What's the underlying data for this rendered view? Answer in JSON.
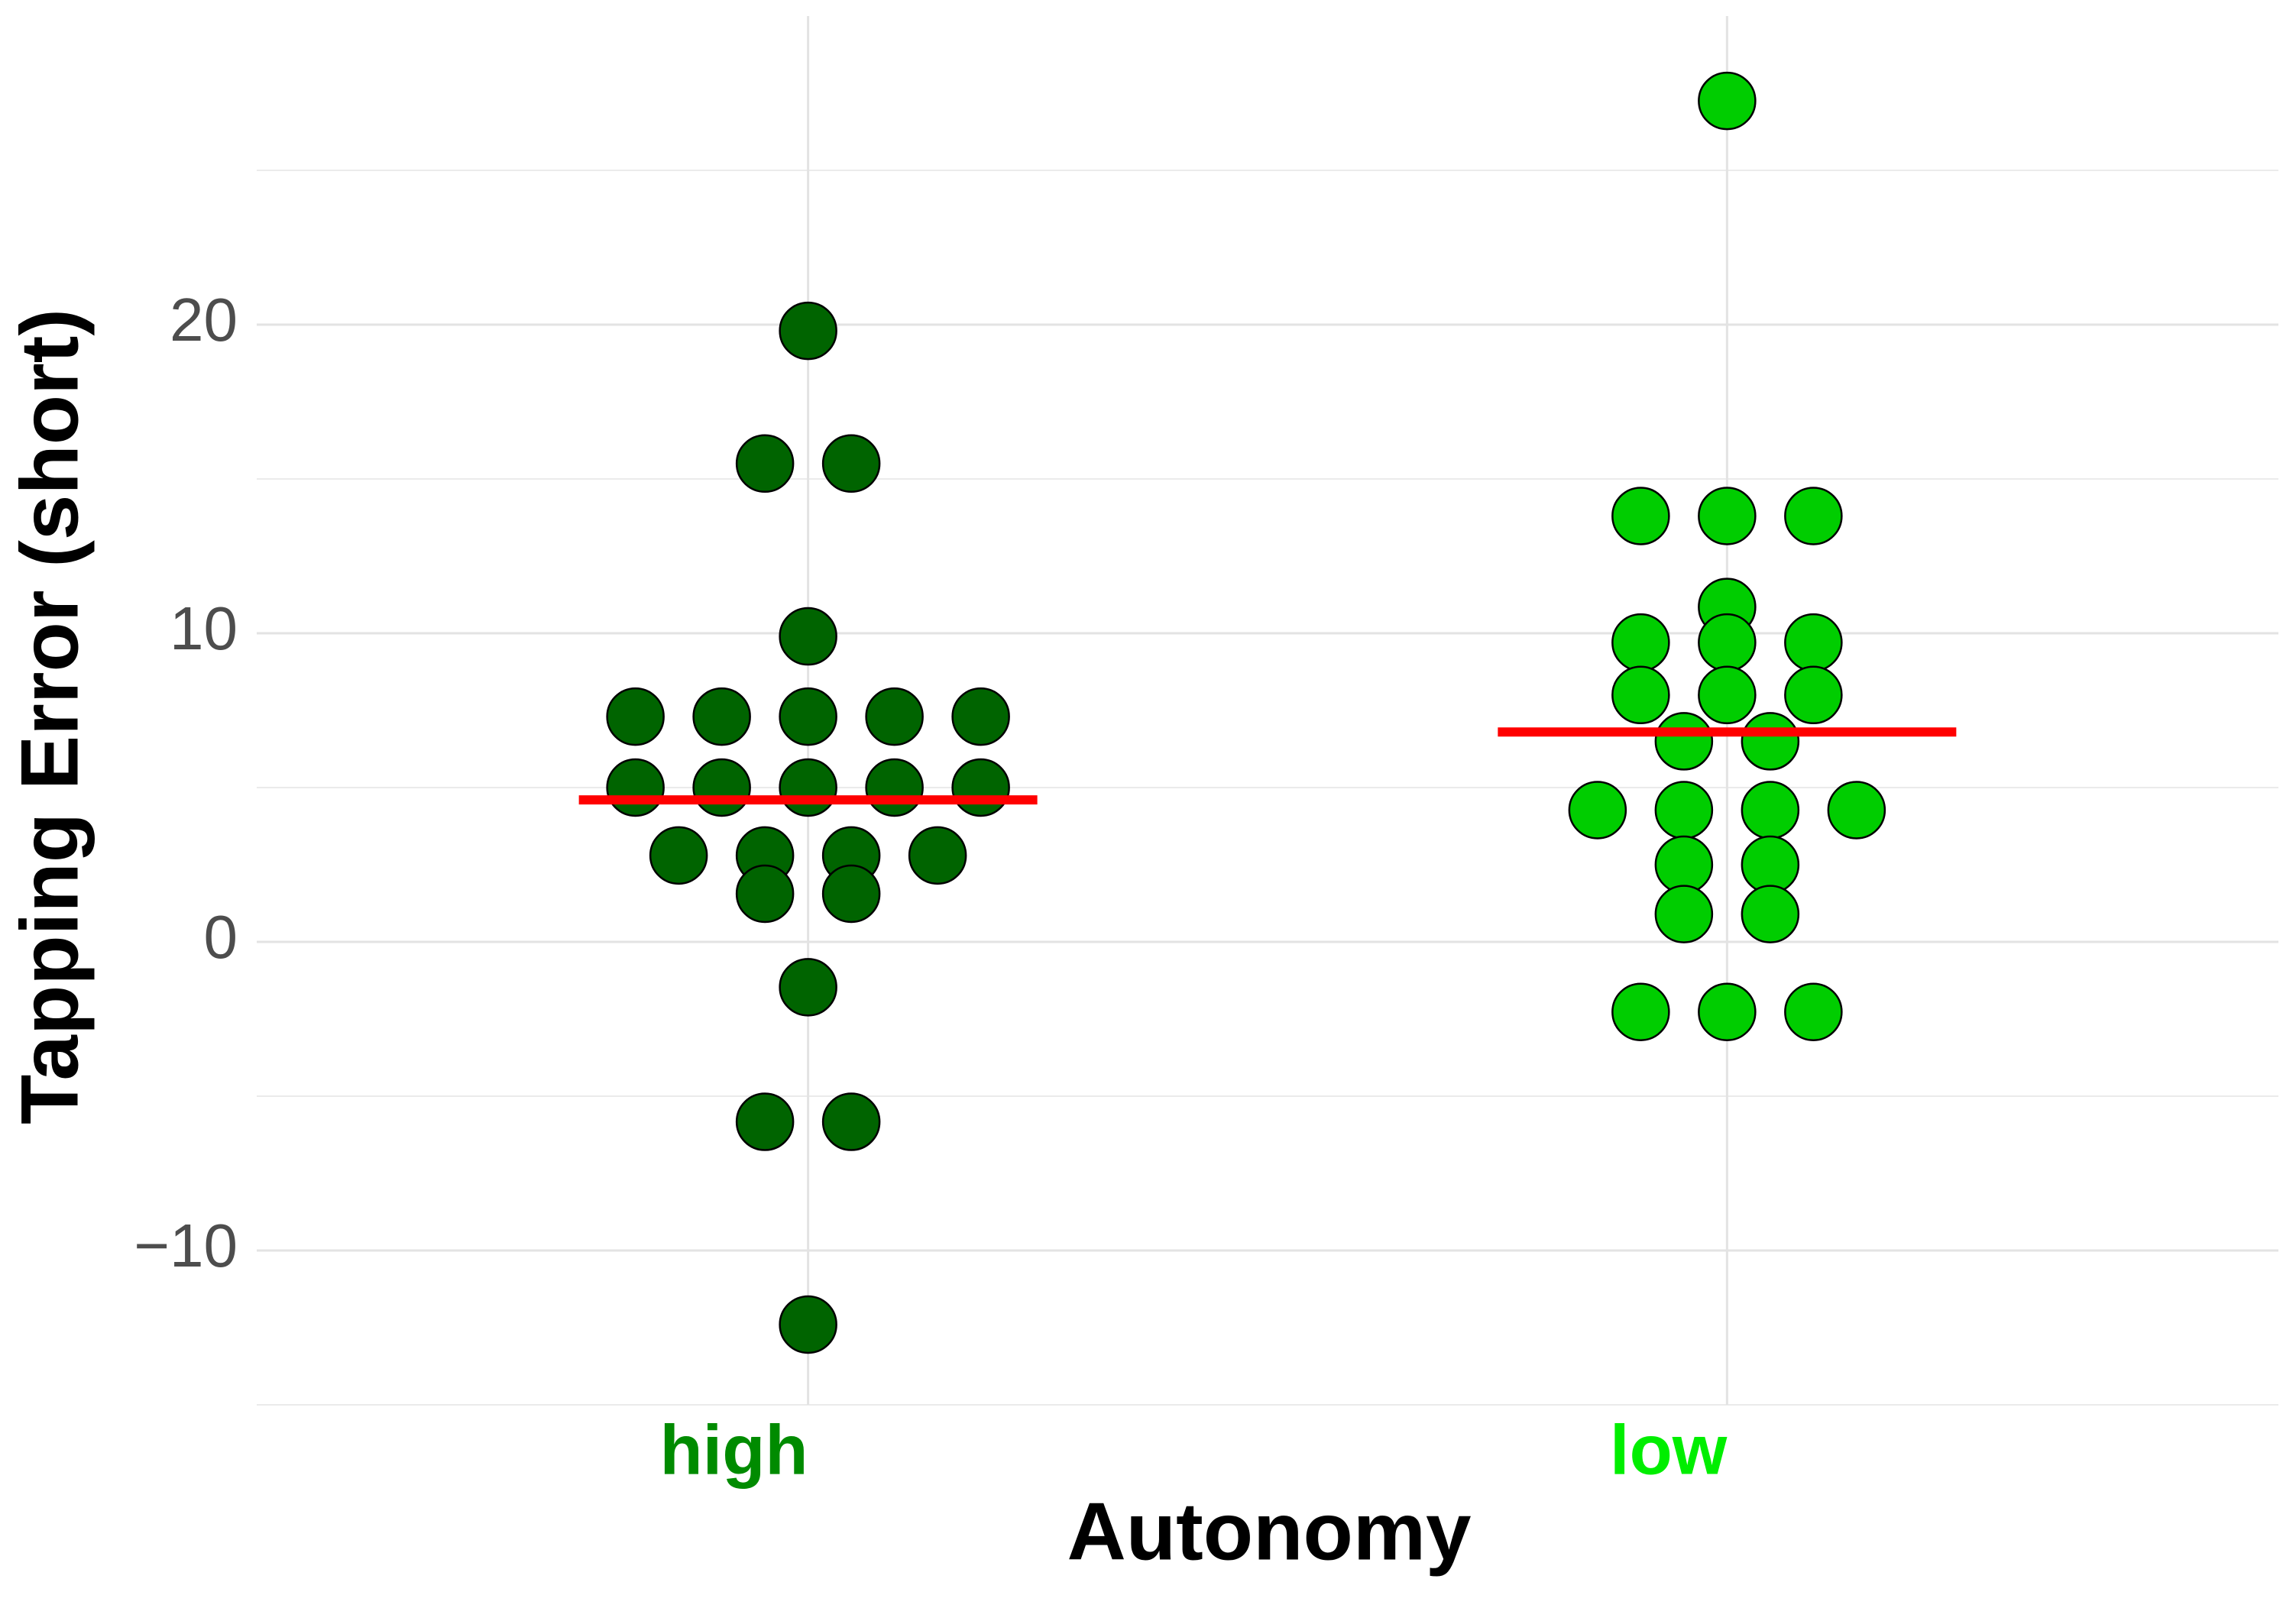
{
  "chart_data": {
    "type": "dotplot",
    "ylabel": "Tapping Error (short)",
    "xlabel": "Autonomy",
    "ylim": [
      -15,
      30
    ],
    "yticks": [
      {
        "value": -10,
        "label": "−10"
      },
      0,
      10,
      20
    ],
    "minor_yticks": [
      -15,
      -5,
      5,
      15,
      25
    ],
    "grid": true,
    "mean_color": "#ff0000",
    "series": [
      {
        "name": "high",
        "color": "#006400",
        "label_color": "#008b00",
        "mean": 4.6,
        "values": [
          19.8,
          15.5,
          15.5,
          9.9,
          7.3,
          7.3,
          7.3,
          7.3,
          7.3,
          5.0,
          5.0,
          5.0,
          5.0,
          5.0,
          2.8,
          2.8,
          2.8,
          2.8,
          1.56,
          1.56,
          -1.47,
          -5.83,
          -5.83,
          -12.4
        ]
      },
      {
        "name": "low",
        "color": "#00cd00",
        "label_color": "#00ee00",
        "mean": 6.8,
        "values": [
          27.25,
          13.8,
          13.8,
          13.8,
          10.85,
          9.7,
          9.7,
          9.7,
          8.0,
          8.0,
          8.0,
          6.5,
          6.5,
          4.27,
          4.27,
          4.27,
          4.27,
          2.5,
          2.5,
          0.9,
          0.9,
          -2.27,
          -2.27,
          -2.27
        ]
      }
    ]
  }
}
